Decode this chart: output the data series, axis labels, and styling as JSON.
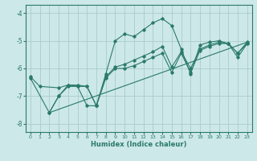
{
  "xlabel": "Humidex (Indice chaleur)",
  "ylabel": "",
  "xlim": [
    -0.5,
    23.5
  ],
  "ylim": [
    -8.3,
    -3.7
  ],
  "yticks": [
    -8,
    -7,
    -6,
    -5,
    -4
  ],
  "xticks": [
    0,
    1,
    2,
    3,
    4,
    5,
    6,
    7,
    8,
    9,
    10,
    11,
    12,
    13,
    14,
    15,
    16,
    17,
    18,
    19,
    20,
    21,
    22,
    23
  ],
  "background_color": "#cde8e8",
  "grid_color": "#aacccc",
  "line_color": "#2a7a6a",
  "series": [
    {
      "x": [
        0,
        1,
        3,
        4,
        5,
        6,
        7,
        8,
        9,
        10,
        11,
        12,
        13,
        14,
        15,
        16,
        17,
        18,
        19,
        20,
        21,
        22,
        23
      ],
      "y": [
        -6.3,
        -6.65,
        -6.7,
        -6.6,
        -6.6,
        -6.65,
        -7.35,
        -6.2,
        -5.0,
        -4.75,
        -4.85,
        -4.6,
        -4.35,
        -4.2,
        -4.45,
        -5.3,
        -6.2,
        -5.15,
        -5.05,
        -5.0,
        -5.1,
        -5.6,
        -5.1
      ]
    },
    {
      "x": [
        2,
        3,
        4,
        5,
        6,
        7,
        8,
        9,
        10,
        11,
        12,
        13,
        14,
        15,
        16,
        17,
        18,
        19,
        20,
        21,
        22,
        23
      ],
      "y": [
        -7.6,
        -7.0,
        -6.65,
        -6.65,
        -7.35,
        -7.35,
        -6.35,
        -6.0,
        -6.0,
        -5.9,
        -5.75,
        -5.6,
        -5.45,
        -6.15,
        -5.45,
        -6.15,
        -5.35,
        -5.2,
        -5.1,
        -5.1,
        -5.45,
        -5.1
      ]
    },
    {
      "x": [
        0,
        2,
        3,
        4,
        5,
        6,
        7,
        8,
        9,
        10,
        11,
        12,
        13,
        14,
        15,
        16,
        17,
        18,
        19,
        20,
        21,
        22,
        23
      ],
      "y": [
        -6.35,
        -7.6,
        -7.0,
        -6.6,
        -6.65,
        -6.65,
        -7.35,
        -6.3,
        -5.95,
        -5.85,
        -5.7,
        -5.55,
        -5.4,
        -5.2,
        -5.95,
        -5.4,
        -6.0,
        -5.3,
        -5.15,
        -5.05,
        -5.1,
        -5.45,
        -5.05
      ]
    },
    {
      "x": [
        2,
        23
      ],
      "y": [
        -7.6,
        -5.05
      ]
    }
  ]
}
